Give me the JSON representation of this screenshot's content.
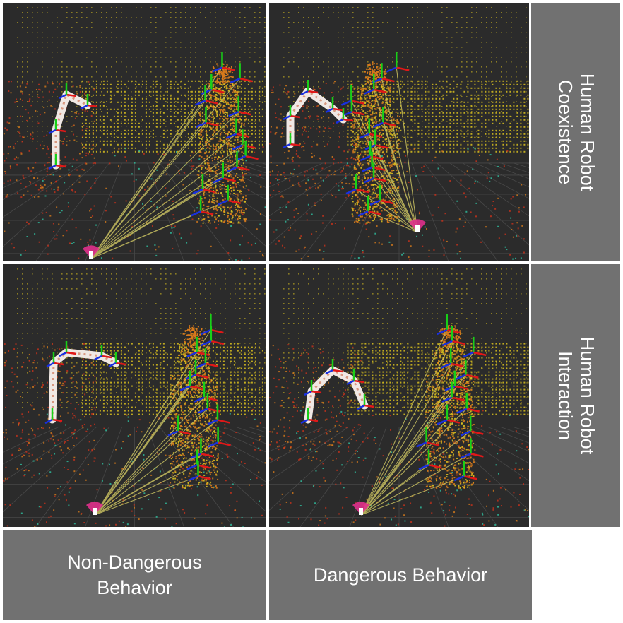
{
  "rows": [
    {
      "label_line1": "Human Robot",
      "label_line2": "Coexistence"
    },
    {
      "label_line1": "Human Robot",
      "label_line2": "Interaction"
    }
  ],
  "columns": [
    {
      "label_line1": "Non-Dangerous",
      "label_line2": "Behavior"
    },
    {
      "label_line1": "Dangerous Behavior",
      "label_line2": ""
    }
  ],
  "colors": {
    "panel_background": "#2b2b2b",
    "label_background": "#717171",
    "label_text": "#ffffff",
    "point_cloud_yellow": "#d8c020",
    "point_cloud_orange": "#d67a1c",
    "point_cloud_red": "#c8321c",
    "skeleton_link": "#c8c060",
    "axis_x": "#e01818",
    "axis_y": "#18d018",
    "axis_z": "#1830e0",
    "sensor_marker": "#e0308c"
  }
}
